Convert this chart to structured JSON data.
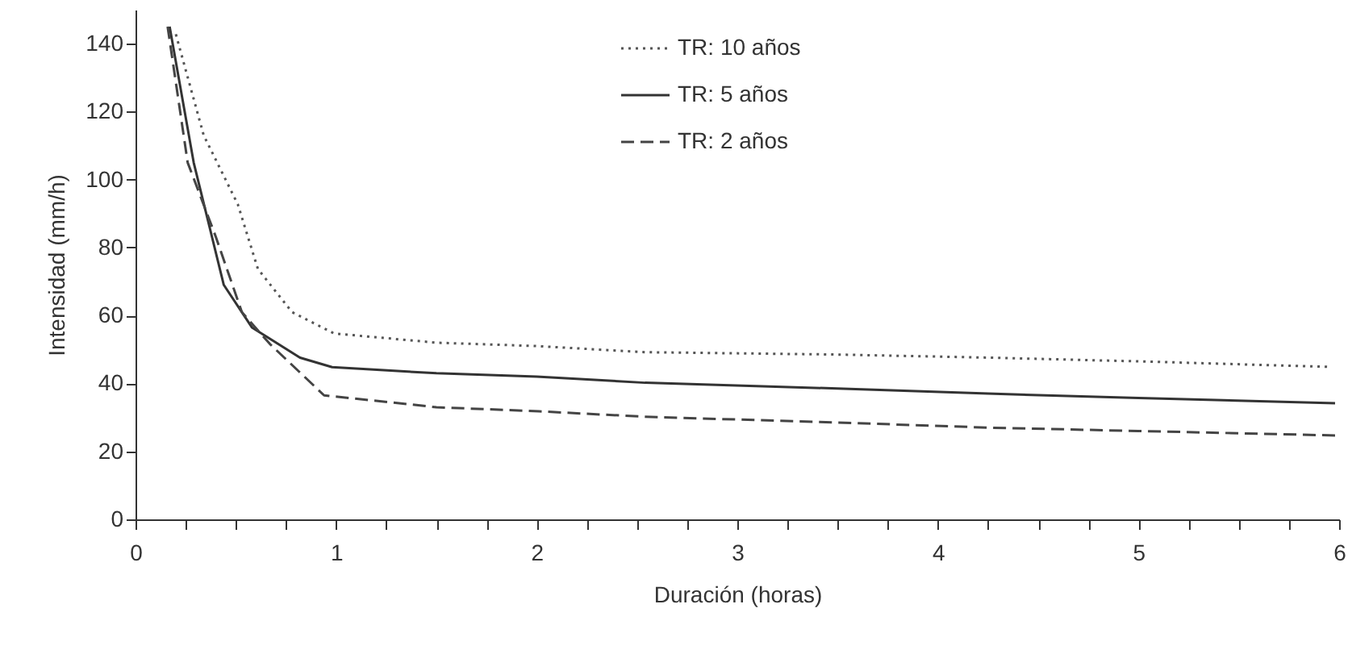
{
  "chart_data": {
    "type": "line",
    "xlabel": "Duración (horas)",
    "ylabel": "Intensidad (mm/h)",
    "xlim": [
      0,
      6
    ],
    "ylim": [
      0,
      150
    ],
    "xticks": [
      0,
      {
        "value": 0.25,
        "label": null
      },
      {
        "value": 0.5,
        "label": null
      },
      {
        "value": 0.75,
        "label": null
      },
      1,
      {
        "value": 1.25,
        "label": null
      },
      {
        "value": 1.5,
        "label": null
      },
      {
        "value": 1.75,
        "label": null
      },
      2,
      {
        "value": 2.25,
        "label": null
      },
      {
        "value": 2.5,
        "label": null
      },
      {
        "value": 2.75,
        "label": null
      },
      3,
      {
        "value": 3.25,
        "label": null
      },
      {
        "value": 3.5,
        "label": null
      },
      {
        "value": 3.75,
        "label": null
      },
      4,
      {
        "value": 4.25,
        "label": null
      },
      {
        "value": 4.5,
        "label": null
      },
      {
        "value": 4.75,
        "label": null
      },
      5,
      {
        "value": 5.25,
        "label": null
      },
      {
        "value": 5.5,
        "label": null
      },
      {
        "value": 5.75,
        "label": null
      },
      6
    ],
    "yticks": [
      0,
      20,
      40,
      60,
      80,
      100,
      120,
      140
    ],
    "grid": false,
    "legend": "top",
    "marker": "none",
    "series": [
      {
        "name": "TR: 10 años",
        "color": "#555555",
        "line_style": "dotted",
        "x": [
          0.2,
          0.34,
          0.51,
          0.61,
          0.78,
          0.99,
          1.5,
          2.0,
          2.54,
          3.5,
          4.25,
          5.0,
          5.94
        ],
        "values": [
          143,
          113,
          92.7,
          73.7,
          61,
          54.7,
          52,
          51,
          49.2,
          48.5,
          47.6,
          46.5,
          44.9
        ]
      },
      {
        "name": "TR: 5 años",
        "color": "#333333",
        "line_style": "solid",
        "x": [
          0.17,
          0.29,
          0.44,
          0.58,
          0.82,
          0.98,
          1.5,
          2.0,
          2.54,
          3.5,
          4.25,
          5.0,
          5.98
        ],
        "values": [
          145,
          105,
          69,
          56.5,
          47.6,
          44.8,
          43,
          42,
          40.2,
          38.5,
          37,
          35.7,
          34.2
        ]
      },
      {
        "name": "TR: 2 años",
        "color": "#444444",
        "line_style": "dashed",
        "x": [
          0.16,
          0.26,
          0.4,
          0.53,
          0.67,
          0.94,
          1.5,
          2.01,
          2.54,
          3.5,
          4.25,
          5.0,
          5.98
        ],
        "values": [
          145,
          105,
          83.2,
          61,
          51.6,
          36.5,
          33,
          31.8,
          30.2,
          28.5,
          27,
          26,
          24.7
        ]
      }
    ]
  }
}
